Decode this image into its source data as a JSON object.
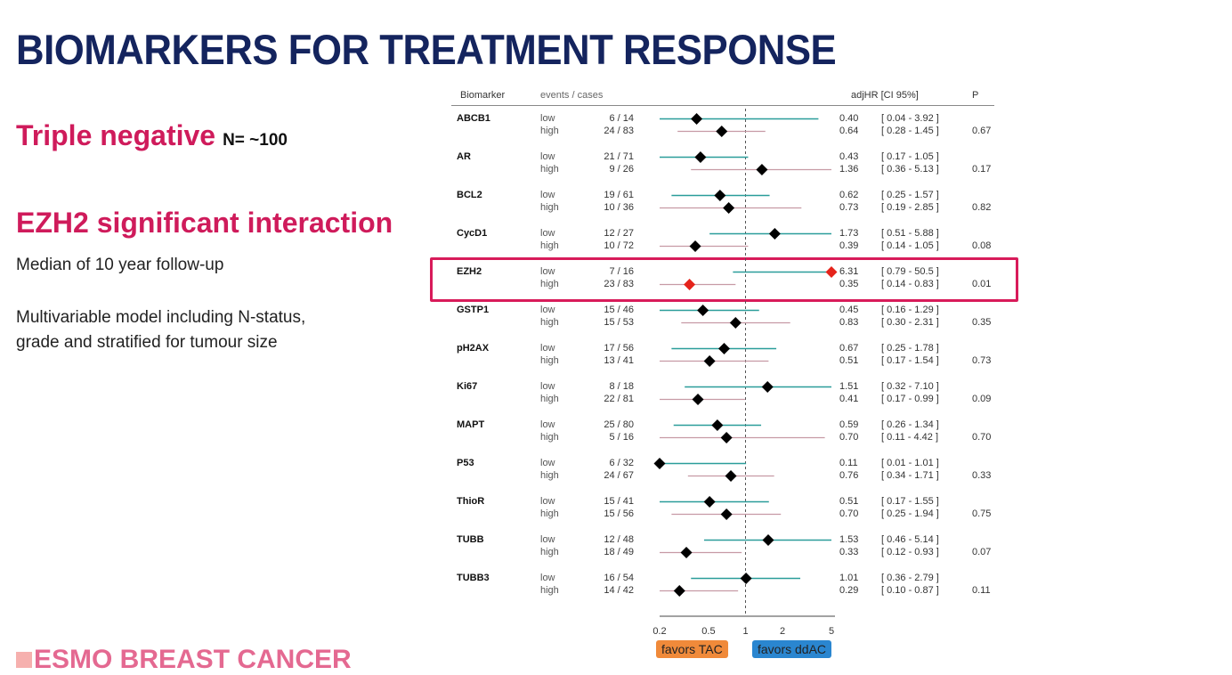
{
  "slide": {
    "title": "BIOMARKERS FOR TREATMENT RESPONSE",
    "subtitle": "Triple negative",
    "n_label": "N= ~100",
    "highlight": "EZH2 significant interaction",
    "note1": "Median of 10 year follow-up",
    "note2_line1": "Multivariable model including N-status,",
    "note2_line2": "grade and stratified for tumour size",
    "footer": "ESMO BREAST CANCER"
  },
  "chart_data": {
    "type": "forest",
    "headers": {
      "biomarker": "Biomarker",
      "events": "events / cases",
      "hr": "adjHR [CI 95%]",
      "p": "P"
    },
    "x_scale": "log",
    "xlim": [
      0.2,
      5
    ],
    "x_ticks": [
      "0.2",
      "0.5",
      "1",
      "2",
      "5"
    ],
    "reference_line": 1,
    "favors_left": "favors TAC",
    "favors_right": "favors ddAC",
    "colors": {
      "low": "#2a9d9a",
      "high": "#c79aa5",
      "marker": "#000000",
      "highlight_marker": "#e5231b",
      "highlight_box": "#d81b5a",
      "favors_left": "#f08a3a",
      "favors_right": "#2a86d0"
    },
    "rows": [
      {
        "biomarker": "ABCB1",
        "p": "0.67",
        "groups": [
          {
            "group": "low",
            "events": "6 / 14",
            "hr": 0.4,
            "lo": 0.04,
            "hi": 3.92,
            "hr_text": "0.40",
            "ci_text": "[ 0.04 - 3.92 ]"
          },
          {
            "group": "high",
            "events": "24 / 83",
            "hr": 0.64,
            "lo": 0.28,
            "hi": 1.45,
            "hr_text": "0.64",
            "ci_text": "[ 0.28 - 1.45 ]"
          }
        ]
      },
      {
        "biomarker": "AR",
        "p": "0.17",
        "groups": [
          {
            "group": "low",
            "events": "21 / 71",
            "hr": 0.43,
            "lo": 0.17,
            "hi": 1.05,
            "hr_text": "0.43",
            "ci_text": "[ 0.17 - 1.05 ]"
          },
          {
            "group": "high",
            "events": "9 / 26",
            "hr": 1.36,
            "lo": 0.36,
            "hi": 5.13,
            "hr_text": "1.36",
            "ci_text": "[ 0.36 - 5.13 ]"
          }
        ]
      },
      {
        "biomarker": "BCL2",
        "p": "0.82",
        "groups": [
          {
            "group": "low",
            "events": "19 / 61",
            "hr": 0.62,
            "lo": 0.25,
            "hi": 1.57,
            "hr_text": "0.62",
            "ci_text": "[ 0.25 - 1.57 ]"
          },
          {
            "group": "high",
            "events": "10 / 36",
            "hr": 0.73,
            "lo": 0.19,
            "hi": 2.85,
            "hr_text": "0.73",
            "ci_text": "[ 0.19 - 2.85 ]"
          }
        ]
      },
      {
        "biomarker": "CycD1",
        "p": "0.08",
        "groups": [
          {
            "group": "low",
            "events": "12 / 27",
            "hr": 1.73,
            "lo": 0.51,
            "hi": 5.88,
            "hr_text": "1.73",
            "ci_text": "[ 0.51 - 5.88 ]"
          },
          {
            "group": "high",
            "events": "10 / 72",
            "hr": 0.39,
            "lo": 0.14,
            "hi": 1.05,
            "hr_text": "0.39",
            "ci_text": "[ 0.14 - 1.05 ]"
          }
        ]
      },
      {
        "biomarker": "EZH2",
        "p": "0.01",
        "highlight": true,
        "groups": [
          {
            "group": "low",
            "events": "7 / 16",
            "hr": 6.31,
            "lo": 0.79,
            "hi": 50.5,
            "hr_text": "6.31",
            "ci_text": "[ 0.79 - 50.5 ]"
          },
          {
            "group": "high",
            "events": "23 / 83",
            "hr": 0.35,
            "lo": 0.14,
            "hi": 0.83,
            "hr_text": "0.35",
            "ci_text": "[ 0.14 - 0.83 ]"
          }
        ]
      },
      {
        "biomarker": "GSTP1",
        "p": "0.35",
        "groups": [
          {
            "group": "low",
            "events": "15 / 46",
            "hr": 0.45,
            "lo": 0.16,
            "hi": 1.29,
            "hr_text": "0.45",
            "ci_text": "[ 0.16 - 1.29 ]"
          },
          {
            "group": "high",
            "events": "15 / 53",
            "hr": 0.83,
            "lo": 0.3,
            "hi": 2.31,
            "hr_text": "0.83",
            "ci_text": "[ 0.30 - 2.31 ]"
          }
        ]
      },
      {
        "biomarker": "pH2AX",
        "p": "0.73",
        "groups": [
          {
            "group": "low",
            "events": "17 / 56",
            "hr": 0.67,
            "lo": 0.25,
            "hi": 1.78,
            "hr_text": "0.67",
            "ci_text": "[ 0.25 - 1.78 ]"
          },
          {
            "group": "high",
            "events": "13 / 41",
            "hr": 0.51,
            "lo": 0.17,
            "hi": 1.54,
            "hr_text": "0.51",
            "ci_text": "[ 0.17 - 1.54 ]"
          }
        ]
      },
      {
        "biomarker": "Ki67",
        "p": "0.09",
        "groups": [
          {
            "group": "low",
            "events": "8 / 18",
            "hr": 1.51,
            "lo": 0.32,
            "hi": 7.1,
            "hr_text": "1.51",
            "ci_text": "[ 0.32 - 7.10 ]"
          },
          {
            "group": "high",
            "events": "22 / 81",
            "hr": 0.41,
            "lo": 0.17,
            "hi": 0.99,
            "hr_text": "0.41",
            "ci_text": "[ 0.17 - 0.99 ]"
          }
        ]
      },
      {
        "biomarker": "MAPT",
        "p": "0.70",
        "groups": [
          {
            "group": "low",
            "events": "25 / 80",
            "hr": 0.59,
            "lo": 0.26,
            "hi": 1.34,
            "hr_text": "0.59",
            "ci_text": "[ 0.26 - 1.34 ]"
          },
          {
            "group": "high",
            "events": "5 / 16",
            "hr": 0.7,
            "lo": 0.11,
            "hi": 4.42,
            "hr_text": "0.70",
            "ci_text": "[ 0.11 - 4.42 ]"
          }
        ]
      },
      {
        "biomarker": "P53",
        "p": "0.33",
        "groups": [
          {
            "group": "low",
            "events": "6 / 32",
            "hr": 0.11,
            "lo": 0.01,
            "hi": 1.01,
            "hr_text": "0.11",
            "ci_text": "[ 0.01 - 1.01 ]"
          },
          {
            "group": "high",
            "events": "24 / 67",
            "hr": 0.76,
            "lo": 0.34,
            "hi": 1.71,
            "hr_text": "0.76",
            "ci_text": "[ 0.34 - 1.71 ]"
          }
        ]
      },
      {
        "biomarker": "ThioR",
        "p": "0.75",
        "groups": [
          {
            "group": "low",
            "events": "15 / 41",
            "hr": 0.51,
            "lo": 0.17,
            "hi": 1.55,
            "hr_text": "0.51",
            "ci_text": "[ 0.17 - 1.55 ]"
          },
          {
            "group": "high",
            "events": "15 / 56",
            "hr": 0.7,
            "lo": 0.25,
            "hi": 1.94,
            "hr_text": "0.70",
            "ci_text": "[ 0.25 - 1.94 ]"
          }
        ]
      },
      {
        "biomarker": "TUBB",
        "p": "0.07",
        "groups": [
          {
            "group": "low",
            "events": "12 / 48",
            "hr": 1.53,
            "lo": 0.46,
            "hi": 5.14,
            "hr_text": "1.53",
            "ci_text": "[ 0.46 - 5.14 ]"
          },
          {
            "group": "high",
            "events": "18 / 49",
            "hr": 0.33,
            "lo": 0.12,
            "hi": 0.93,
            "hr_text": "0.33",
            "ci_text": "[ 0.12 - 0.93 ]"
          }
        ]
      },
      {
        "biomarker": "TUBB3",
        "p": "0.11",
        "groups": [
          {
            "group": "low",
            "events": "16 / 54",
            "hr": 1.01,
            "lo": 0.36,
            "hi": 2.79,
            "hr_text": "1.01",
            "ci_text": "[ 0.36 - 2.79 ]"
          },
          {
            "group": "high",
            "events": "14 / 42",
            "hr": 0.29,
            "lo": 0.1,
            "hi": 0.87,
            "hr_text": "0.29",
            "ci_text": "[ 0.10 - 0.87 ]"
          }
        ]
      }
    ]
  }
}
